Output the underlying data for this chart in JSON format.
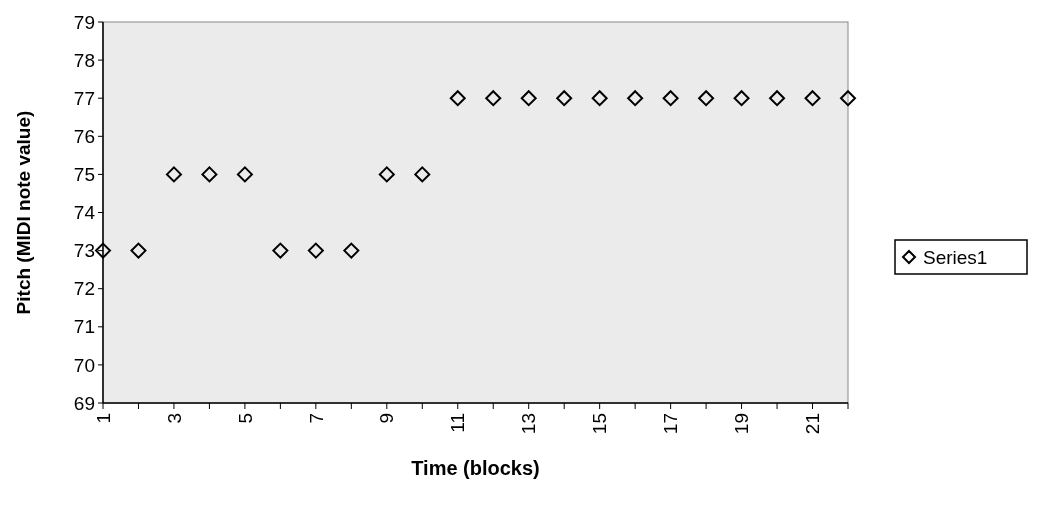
{
  "chart_data": {
    "type": "scatter",
    "xlabel": "Time (blocks)",
    "ylabel": "Pitch (MIDI note value)",
    "x": [
      1,
      2,
      3,
      4,
      5,
      6,
      7,
      8,
      9,
      10,
      11,
      12,
      13,
      14,
      15,
      16,
      17,
      18,
      19,
      20,
      21,
      22
    ],
    "series": [
      {
        "name": "Series1",
        "color": "#000000",
        "values": [
          73,
          73,
          75,
          75,
          75,
          73,
          73,
          73,
          75,
          75,
          77,
          77,
          77,
          77,
          77,
          77,
          77,
          77,
          77,
          77,
          77,
          77
        ]
      }
    ],
    "xlim": [
      1,
      22
    ],
    "ylim": [
      69,
      79
    ],
    "xticks": [
      1,
      {
        "value": 2,
        "label": null
      },
      3,
      {
        "value": 4,
        "label": null
      },
      5,
      {
        "value": 6,
        "label": null
      },
      7,
      {
        "value": 8,
        "label": null
      },
      9,
      {
        "value": 10,
        "label": null
      },
      11,
      {
        "value": 12,
        "label": null
      },
      13,
      {
        "value": 14,
        "label": null
      },
      15,
      {
        "value": 16,
        "label": null
      },
      17,
      {
        "value": 18,
        "label": null
      },
      19,
      {
        "value": 20,
        "label": null
      },
      21,
      {
        "value": 22,
        "label": null
      }
    ],
    "yticks": [
      69,
      70,
      71,
      72,
      73,
      74,
      75,
      76,
      77,
      78,
      79
    ],
    "grid": false,
    "legend": "right",
    "marker": "diamond"
  }
}
